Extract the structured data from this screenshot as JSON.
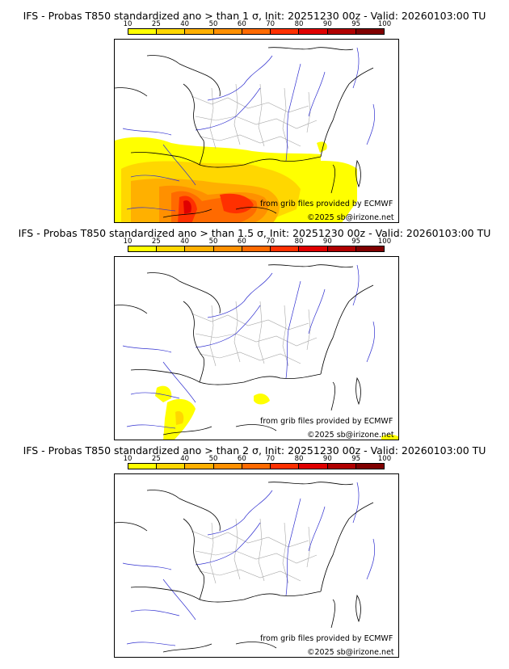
{
  "colorbar": {
    "ticks": [
      "10",
      "25",
      "40",
      "50",
      "60",
      "70",
      "80",
      "90",
      "95",
      "100"
    ],
    "colors": [
      "#ffff00",
      "#ffd700",
      "#ffb000",
      "#ff9000",
      "#ff6a00",
      "#ff3000",
      "#e00000",
      "#b00000",
      "#800000"
    ]
  },
  "panels": [
    {
      "title": "IFS - Probas T850  standardized ano > than 1 σ, Init: 20251230 00z - Valid: 20260103:00 TU",
      "credit_source": "from grib files provided by ECMWF",
      "credit_copyright": "©2025 sb@irizone.net"
    },
    {
      "title": "IFS - Probas T850  standardized ano > than 1.5 σ, Init: 20251230 00z - Valid: 20260103:00 TU",
      "credit_source": "from grib files provided by ECMWF",
      "credit_copyright": "©2025 sb@irizone.net"
    },
    {
      "title": "IFS - Probas T850  standardized ano > than 2 σ, Init: 20251230 00z - Valid: 20260103:00 TU",
      "credit_source": "from grib files provided by ECMWF",
      "credit_copyright": "©2025 sb@irizone.net"
    }
  ]
}
